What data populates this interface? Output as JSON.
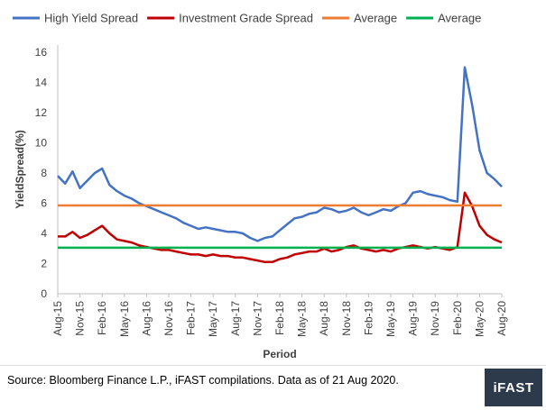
{
  "chart_data": {
    "type": "line",
    "title": "",
    "xlabel": "Period",
    "ylabel": "YieldSpread(%)",
    "ylim": [
      0,
      16
    ],
    "yticks": [
      0,
      2,
      4,
      6,
      8,
      10,
      12,
      14,
      16
    ],
    "x_tick_labels": [
      "Aug-15",
      "Nov-15",
      "Feb-16",
      "May-16",
      "Aug-16",
      "Nov-16",
      "Feb-17",
      "May-17",
      "Aug-17",
      "Nov-17",
      "Feb-18",
      "May-18",
      "Aug-18",
      "Nov-18",
      "Feb-19",
      "May-19",
      "Aug-19",
      "Nov-19",
      "Feb-20",
      "May-20",
      "Aug-20"
    ],
    "legend_position": "top",
    "series": [
      {
        "name": "High Yield Spread",
        "color": "#4472C4",
        "kind": "line",
        "x": [
          "Aug-15",
          "Sep-15",
          "Oct-15",
          "Nov-15",
          "Dec-15",
          "Jan-16",
          "Feb-16",
          "Mar-16",
          "Apr-16",
          "May-16",
          "Jun-16",
          "Jul-16",
          "Aug-16",
          "Sep-16",
          "Oct-16",
          "Nov-16",
          "Dec-16",
          "Jan-17",
          "Feb-17",
          "Mar-17",
          "Apr-17",
          "May-17",
          "Jun-17",
          "Jul-17",
          "Aug-17",
          "Sep-17",
          "Oct-17",
          "Nov-17",
          "Dec-17",
          "Jan-18",
          "Feb-18",
          "Mar-18",
          "Apr-18",
          "May-18",
          "Jun-18",
          "Jul-18",
          "Aug-18",
          "Sep-18",
          "Oct-18",
          "Nov-18",
          "Dec-18",
          "Jan-19",
          "Feb-19",
          "Mar-19",
          "Apr-19",
          "May-19",
          "Jun-19",
          "Jul-19",
          "Aug-19",
          "Sep-19",
          "Oct-19",
          "Nov-19",
          "Dec-19",
          "Jan-20",
          "Feb-20",
          "Mar-20",
          "Apr-20",
          "May-20",
          "Jun-20",
          "Jul-20",
          "Aug-20"
        ],
        "values": [
          7.8,
          7.3,
          8.1,
          7.0,
          7.5,
          8.0,
          8.3,
          7.2,
          6.8,
          6.5,
          6.3,
          6.0,
          5.8,
          5.6,
          5.4,
          5.2,
          5.0,
          4.7,
          4.5,
          4.3,
          4.4,
          4.3,
          4.2,
          4.1,
          4.1,
          4.0,
          3.7,
          3.5,
          3.7,
          3.8,
          4.2,
          4.6,
          5.0,
          5.1,
          5.3,
          5.4,
          5.7,
          5.6,
          5.4,
          5.5,
          5.7,
          5.4,
          5.2,
          5.4,
          5.6,
          5.5,
          5.8,
          6.0,
          6.7,
          6.8,
          6.6,
          6.5,
          6.4,
          6.2,
          6.1,
          15.0,
          12.5,
          9.5,
          8.0,
          7.6,
          7.1
        ]
      },
      {
        "name": "Investment Grade Spread",
        "color": "#C00000",
        "kind": "line",
        "x": [
          "Aug-15",
          "Sep-15",
          "Oct-15",
          "Nov-15",
          "Dec-15",
          "Jan-16",
          "Feb-16",
          "Mar-16",
          "Apr-16",
          "May-16",
          "Jun-16",
          "Jul-16",
          "Aug-16",
          "Sep-16",
          "Oct-16",
          "Nov-16",
          "Dec-16",
          "Jan-17",
          "Feb-17",
          "Mar-17",
          "Apr-17",
          "May-17",
          "Jun-17",
          "Jul-17",
          "Aug-17",
          "Sep-17",
          "Oct-17",
          "Nov-17",
          "Dec-17",
          "Jan-18",
          "Feb-18",
          "Mar-18",
          "Apr-18",
          "May-18",
          "Jun-18",
          "Jul-18",
          "Aug-18",
          "Sep-18",
          "Oct-18",
          "Nov-18",
          "Dec-18",
          "Jan-19",
          "Feb-19",
          "Mar-19",
          "Apr-19",
          "May-19",
          "Jun-19",
          "Jul-19",
          "Aug-19",
          "Sep-19",
          "Oct-19",
          "Nov-19",
          "Dec-19",
          "Jan-20",
          "Feb-20",
          "Mar-20",
          "Apr-20",
          "May-20",
          "Jun-20",
          "Jul-20",
          "Aug-20"
        ],
        "values": [
          3.8,
          3.8,
          4.1,
          3.7,
          3.9,
          4.2,
          4.5,
          4.0,
          3.6,
          3.5,
          3.4,
          3.2,
          3.1,
          3.0,
          2.9,
          2.9,
          2.8,
          2.7,
          2.6,
          2.6,
          2.5,
          2.6,
          2.5,
          2.5,
          2.4,
          2.4,
          2.3,
          2.2,
          2.1,
          2.1,
          2.3,
          2.4,
          2.6,
          2.7,
          2.8,
          2.8,
          3.0,
          2.8,
          2.9,
          3.1,
          3.2,
          3.0,
          2.9,
          2.8,
          2.9,
          2.8,
          3.0,
          3.1,
          3.2,
          3.1,
          3.0,
          3.1,
          3.0,
          2.9,
          3.1,
          6.7,
          5.8,
          4.5,
          3.9,
          3.6,
          3.4
        ]
      },
      {
        "name": "Average",
        "color": "#ED7D31",
        "kind": "constant",
        "value": 5.85
      },
      {
        "name": "Average",
        "color": "#00B050",
        "kind": "constant",
        "value": 3.05
      }
    ]
  },
  "footer": {
    "source_text": "Source: Bloomberg Finance L.P., iFAST compilations. Data as of 21 Aug 2020.",
    "logo_text": "iFAST"
  }
}
